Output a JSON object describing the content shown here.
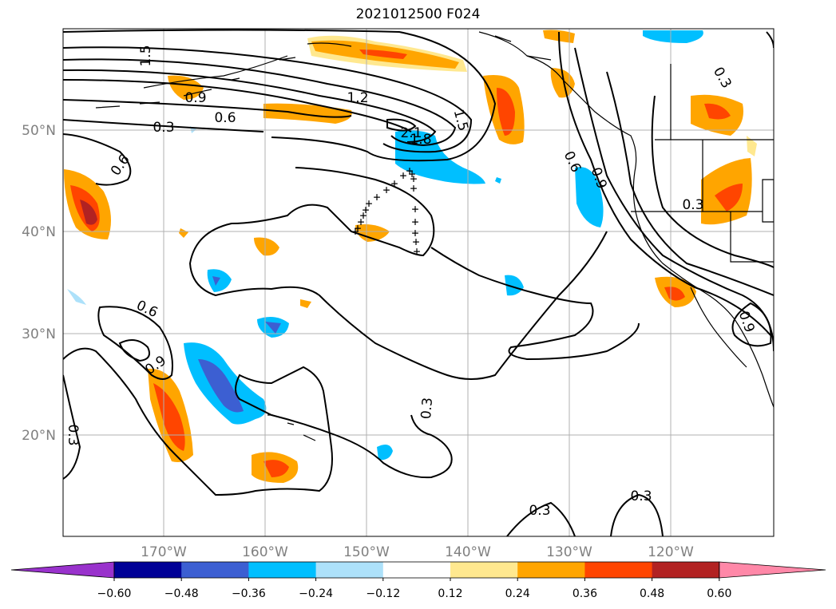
{
  "title": "2021012500 F024",
  "chart_data": {
    "type": "contour-map",
    "title": "2021012500 F024",
    "lon_ticks": [
      "170°W",
      "160°W",
      "150°W",
      "140°W",
      "130°W",
      "120°W"
    ],
    "lat_ticks": [
      "50°N",
      "40°N",
      "30°N",
      "20°N"
    ],
    "extent": {
      "lon": [
        -180,
        -110
      ],
      "lat": [
        10,
        60
      ]
    },
    "grid": true,
    "colorbar": {
      "ticks": [
        "−0.60",
        "−0.48",
        "−0.36",
        "−0.24",
        "−0.12",
        "0.12",
        "0.24",
        "0.36",
        "0.48",
        "0.60"
      ],
      "levels": [
        -0.6,
        -0.48,
        -0.36,
        -0.24,
        -0.12,
        0.12,
        0.24,
        0.36,
        0.48,
        0.6
      ],
      "colors": [
        "#9932CC",
        "#000096",
        "#3C5FD2",
        "#00BFFF",
        "#ADE1FA",
        "#FFFFFF",
        "#FFE88F",
        "#FFA500",
        "#FF4500",
        "#B22222",
        "#FF88A8"
      ],
      "extend": "both"
    },
    "contour_labels": [
      "1.5",
      "0.9",
      "0.6",
      "0.3",
      "1.2",
      "2.1",
      "1.8",
      "1.5",
      "0.6",
      "0.9",
      "0.3",
      "0.6",
      "0.9",
      "0.3",
      "0.3",
      "0.3",
      "0.3",
      "0.6",
      "0.9"
    ],
    "markers": {
      "symbol": "+"
    }
  }
}
